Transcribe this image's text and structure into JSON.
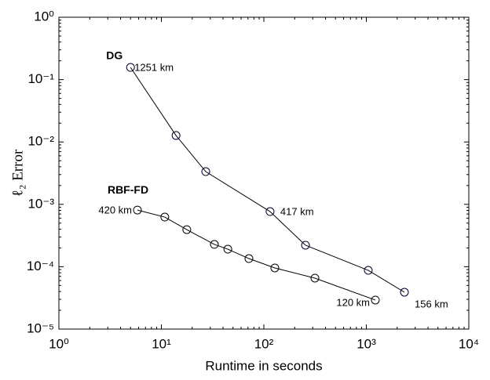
{
  "chart_data": {
    "type": "line",
    "x_label": "Runtime in seconds",
    "y_label": "ℓ₂ Error",
    "x_log": true,
    "y_log": true,
    "xlim": [
      1,
      10000
    ],
    "ylim": [
      1e-05,
      1
    ],
    "xticks": [
      {
        "value": 1,
        "label": "10⁰"
      },
      {
        "value": 10,
        "label": "10¹"
      },
      {
        "value": 100,
        "label": "10²"
      },
      {
        "value": 1000,
        "label": "10³"
      },
      {
        "value": 10000,
        "label": "10⁴"
      }
    ],
    "yticks": [
      {
        "value": 1e-05,
        "label": "10⁻⁵"
      },
      {
        "value": 0.0001,
        "label": "10⁻⁴"
      },
      {
        "value": 0.001,
        "label": "10⁻³"
      },
      {
        "value": 0.01,
        "label": "10⁻²"
      },
      {
        "value": 0.1,
        "label": "10⁻¹"
      },
      {
        "value": 1,
        "label": "10⁰"
      }
    ],
    "series": [
      {
        "name": "DG",
        "color": "#000000",
        "marker_color": "#000033",
        "x": [
          5.0,
          13.9,
          27.1,
          115,
          255,
          1045,
          2354
        ],
        "values": [
          0.157,
          0.0127,
          0.00335,
          0.000766,
          0.000221,
          8.75e-05,
          3.9e-05
        ],
        "point_labels": [
          {
            "index": 0,
            "text": "1251 km"
          },
          {
            "index": 3,
            "text": "417 km"
          },
          {
            "index": 6,
            "text": "156 km"
          }
        ]
      },
      {
        "name": "RBF-FD",
        "color": "#000000",
        "marker_color": "#000000",
        "x": [
          5.84,
          10.8,
          17.7,
          32.9,
          44.5,
          71.5,
          128,
          315,
          1225
        ],
        "values": [
          0.00081,
          0.000625,
          0.000393,
          0.000228,
          0.000191,
          0.000135,
          9.55e-05,
          6.56e-05,
          2.92e-05
        ],
        "point_labels": [
          {
            "index": 0,
            "text": "420 km"
          },
          {
            "index": 8,
            "text": "120 km"
          }
        ]
      }
    ]
  }
}
